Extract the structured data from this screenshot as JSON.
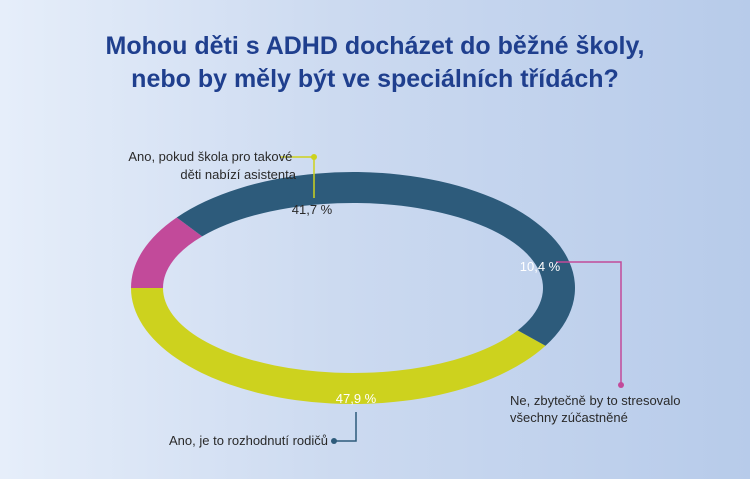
{
  "title_lines": [
    "Mohou děti s ADHD docházet do běžné školy,",
    "nebo by měly být ve speciálních třídách?"
  ],
  "chart_data": {
    "type": "pie",
    "variant": "donut",
    "title": "Mohou děti s ADHD docházet do běžné školy, nebo by měly být ve speciálních třídách?",
    "slices": [
      {
        "label_lines": [
          "Ano, pokud škola pro takové",
          "děti nabízí asistenta"
        ],
        "value": 41.7,
        "value_text": "41,7 %",
        "color": "#cdd21e",
        "text_color": "#2a2a2a"
      },
      {
        "label_lines": [
          "Ne, zbytečně by to stresovalo",
          "všechny zúčastněné"
        ],
        "value": 10.4,
        "value_text": "10,4 %",
        "color": "#c24a9a",
        "text_color": "#ffffff"
      },
      {
        "label_lines": [
          "Ano, je to rozhodnutí rodičů"
        ],
        "value": 47.9,
        "value_text": "47,9 %",
        "color": "#2d5b7b",
        "text_color": "#ffffff"
      }
    ]
  }
}
